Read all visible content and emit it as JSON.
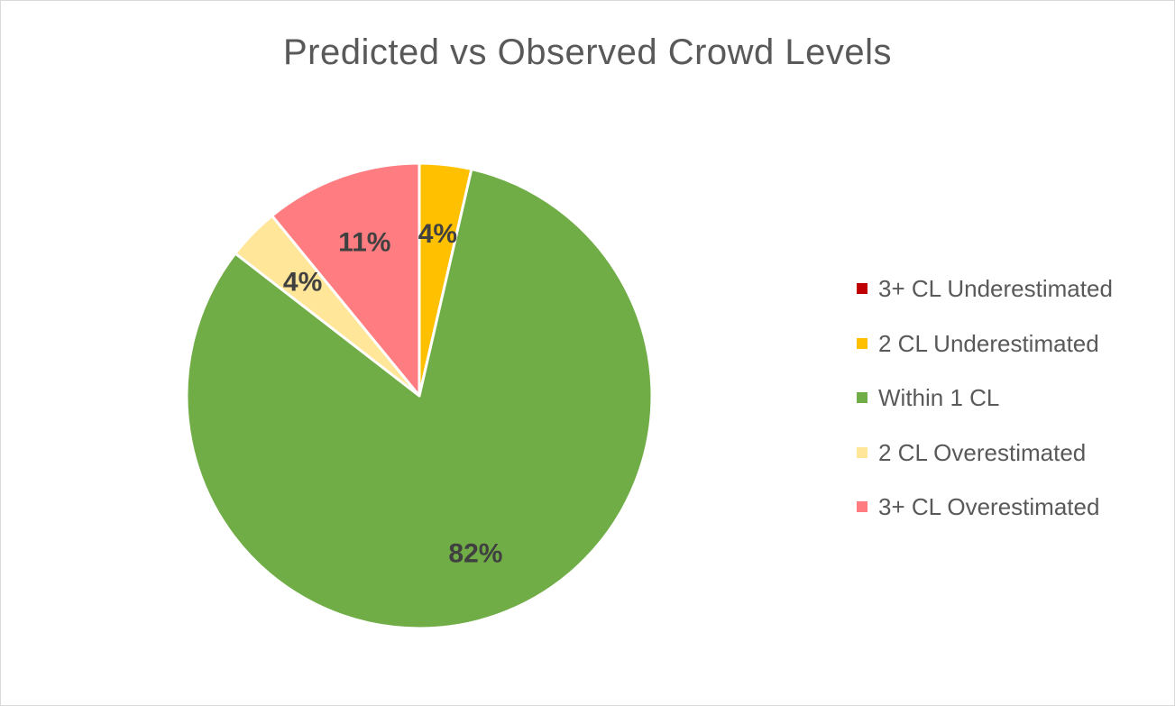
{
  "chart_data": {
    "type": "pie",
    "title": "Predicted vs Observed Crowd Levels",
    "slices": [
      {
        "name": "3+ CL Underestimated",
        "value": 0,
        "label": "",
        "color": "#c00000"
      },
      {
        "name": "2 CL Underestimated",
        "value": 3.6,
        "label": "4%",
        "color": "#ffc000"
      },
      {
        "name": "Within 1 CL",
        "value": 81.8,
        "label": "82%",
        "color": "#70ad47"
      },
      {
        "name": "2 CL Overestimated",
        "value": 3.6,
        "label": "4%",
        "color": "#ffe699"
      },
      {
        "name": "3+ CL Overestimated",
        "value": 10.9,
        "label": "11%",
        "color": "#ff7c80"
      }
    ],
    "legend_position": "right",
    "start_angle": "12 o'clock",
    "direction": "clockwise"
  }
}
